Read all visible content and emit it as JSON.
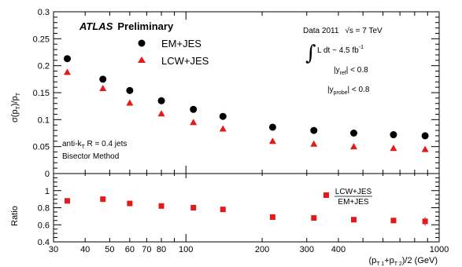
{
  "chart_data": [
    {
      "type": "scatter",
      "panel": "main",
      "title": "",
      "xlabel": "(p_T1+p_T2)/2 (GeV)",
      "ylabel": "σ(p_T)/p_T",
      "x_scale": "log",
      "xlim": [
        30,
        1000
      ],
      "ylim": [
        0,
        0.3
      ],
      "x_ticks": [
        30,
        40,
        50,
        60,
        70,
        80,
        100,
        200,
        300,
        400,
        1000
      ],
      "x_tick_labels": [
        "30",
        "40",
        "50",
        "60",
        "70",
        "80",
        "100",
        "200",
        "300",
        "400",
        "1000"
      ],
      "y_ticks": [
        0,
        0.05,
        0.1,
        0.15,
        0.2,
        0.25,
        0.3
      ],
      "y_tick_labels": [
        "0",
        "0.05",
        "0.1",
        "0.15",
        "0.2",
        "0.25",
        "0.3"
      ],
      "grid": false,
      "legend_position": "top-left",
      "series": [
        {
          "name": "EM+JES",
          "marker": "circle",
          "color": "#000000",
          "x": [
            34,
            47,
            60,
            80,
            107,
            140,
            220,
            320,
            460,
            660,
            880
          ],
          "y": [
            0.213,
            0.175,
            0.154,
            0.135,
            0.119,
            0.106,
            0.086,
            0.08,
            0.075,
            0.072,
            0.07
          ]
        },
        {
          "name": "LCW+JES",
          "marker": "triangle",
          "color": "#e4191b",
          "x": [
            34,
            47,
            60,
            80,
            107,
            140,
            220,
            320,
            460,
            660,
            880
          ],
          "y": [
            0.188,
            0.158,
            0.131,
            0.111,
            0.095,
            0.083,
            0.06,
            0.055,
            0.05,
            0.047,
            0.045
          ]
        }
      ]
    },
    {
      "type": "scatter",
      "panel": "ratio",
      "xlabel": "(p_T1+p_T2)/2 (GeV)",
      "ylabel": "Ratio",
      "x_scale": "log",
      "xlim": [
        30,
        1000
      ],
      "ylim": [
        0.4,
        1.2
      ],
      "y_ticks": [
        0.4,
        0.6,
        0.8,
        1,
        1.2
      ],
      "y_tick_labels": [
        "0.4",
        "0.6",
        "0.8",
        "1",
        ""
      ],
      "legend_position": "top-right",
      "series": [
        {
          "name": "LCW+JES / EM+JES",
          "marker": "square",
          "color": "#e4191b",
          "x": [
            34,
            47,
            60,
            80,
            107,
            140,
            220,
            320,
            460,
            660,
            880
          ],
          "y": [
            0.88,
            0.9,
            0.85,
            0.82,
            0.8,
            0.78,
            0.69,
            0.68,
            0.66,
            0.65,
            0.64
          ],
          "yerr": [
            0.01,
            0.01,
            0.01,
            0.01,
            0.01,
            0.01,
            0.01,
            0.01,
            0.01,
            0.01,
            0.05
          ]
        }
      ]
    }
  ],
  "labels": {
    "atlas": "ATLAS",
    "preliminary": "Preliminary",
    "data_year": "Data 2011",
    "sqrt_s": "√s = 7 TeV",
    "lumi_int": "∫",
    "lumi_text": "L dt ~ 4.5 fb",
    "lumi_sup": "-1",
    "yref": "|y",
    "yref_sub": "ref",
    "yref_cut": "| < 0.8",
    "yprobe": "|y",
    "yprobe_sub": "probe",
    "yprobe_cut": "| < 0.8",
    "jets": "anti-k",
    "jets_sub": "T",
    "jets_rest": " R = 0.4 jets",
    "method": "Bisector Method",
    "ratio_num": "LCW+JES",
    "ratio_den": "EM+JES",
    "ylabel_main": "σ(p",
    "ylabel_main_sub": "T",
    "ylabel_main_mid": ")/p",
    "ylabel_main_sub2": "T",
    "ylabel_ratio": "Ratio",
    "xlabel_a": "(p",
    "xlabel_sub1": "T 1",
    "xlabel_b": "+p",
    "xlabel_sub2": "T 2",
    "xlabel_c": ")/2 (GeV)"
  }
}
